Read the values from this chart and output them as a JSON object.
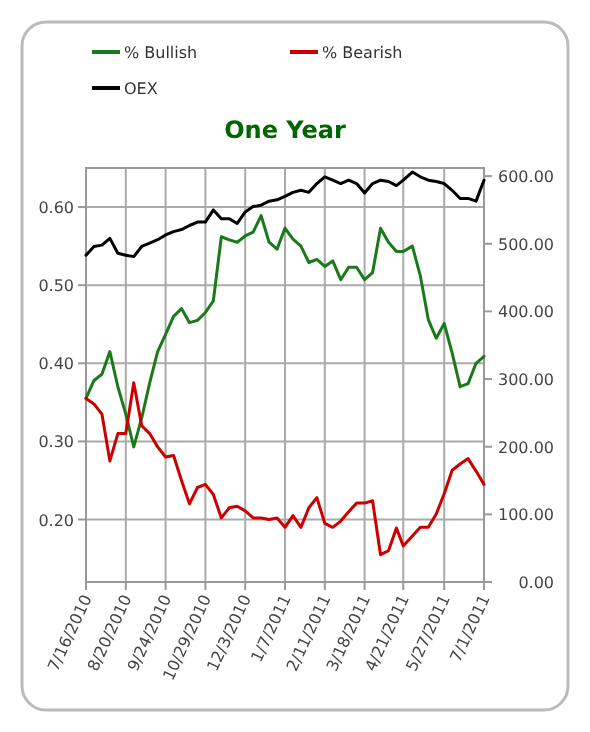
{
  "chart_data": {
    "type": "line",
    "title": "One Year",
    "x": [
      "2010-07-16",
      "2010-07-23",
      "2010-07-30",
      "2010-08-06",
      "2010-08-13",
      "2010-08-20",
      "2010-08-27",
      "2010-09-03",
      "2010-09-10",
      "2010-09-17",
      "2010-09-24",
      "2010-10-01",
      "2010-10-08",
      "2010-10-15",
      "2010-10-22",
      "2010-10-29",
      "2010-11-05",
      "2010-11-12",
      "2010-11-19",
      "2010-11-26",
      "2010-12-03",
      "2010-12-10",
      "2010-12-17",
      "2010-12-24",
      "2010-12-31",
      "2011-01-07",
      "2011-01-14",
      "2011-01-21",
      "2011-01-28",
      "2011-02-04",
      "2011-02-11",
      "2011-02-18",
      "2011-02-25",
      "2011-03-04",
      "2011-03-11",
      "2011-03-18",
      "2011-03-25",
      "2011-04-01",
      "2011-04-08",
      "2011-04-15",
      "2011-04-21",
      "2011-04-29",
      "2011-05-06",
      "2011-05-13",
      "2011-05-20",
      "2011-05-27",
      "2011-06-03",
      "2011-06-10",
      "2011-06-17",
      "2011-06-24",
      "2011-07-01"
    ],
    "series": [
      {
        "name": "% Bullish",
        "color": "#1a7a1a",
        "values": [
          0.355,
          0.378,
          0.386,
          0.415,
          0.37,
          0.335,
          0.293,
          0.33,
          0.375,
          0.415,
          0.437,
          0.46,
          0.47,
          0.452,
          0.455,
          0.465,
          0.48,
          0.562,
          0.558,
          0.555,
          0.563,
          0.568,
          0.589,
          0.555,
          0.546,
          0.573,
          0.559,
          0.55,
          0.529,
          0.533,
          0.524,
          0.531,
          0.507,
          0.523,
          0.523,
          0.507,
          0.516,
          0.573,
          0.555,
          0.543,
          0.543,
          0.55,
          0.512,
          0.456,
          0.432,
          0.451,
          0.413,
          0.37,
          0.374,
          0.4,
          0.409
        ]
      },
      {
        "name": "% Bearish",
        "color": "#cc0000",
        "values": [
          0.355,
          0.348,
          0.335,
          0.275,
          0.31,
          0.31,
          0.375,
          0.32,
          0.31,
          0.293,
          0.28,
          0.282,
          0.25,
          0.22,
          0.241,
          0.245,
          0.232,
          0.202,
          0.215,
          0.217,
          0.211,
          0.202,
          0.202,
          0.2,
          0.202,
          0.19,
          0.205,
          0.19,
          0.215,
          0.228,
          0.195,
          0.19,
          0.198,
          0.21,
          0.221,
          0.221,
          0.224,
          0.155,
          0.16,
          0.189,
          0.166,
          0.179,
          0.19,
          0.19,
          0.207,
          0.233,
          0.263,
          0.271,
          0.278,
          0.262,
          0.245
        ]
      },
      {
        "name": "OEX",
        "color": "#000000",
        "axis": "y2",
        "values": [
          483,
          496,
          498,
          508,
          486,
          483,
          481,
          496,
          501,
          506,
          513,
          518,
          521,
          527,
          532,
          532,
          550,
          537,
          537,
          530,
          547,
          555,
          557,
          563,
          565,
          570,
          576,
          579,
          576,
          589,
          599,
          594,
          589,
          594,
          589,
          575,
          589,
          594,
          592,
          586,
          594,
          606,
          599,
          594,
          592,
          589,
          579,
          567,
          567,
          563,
          594
        ]
      }
    ],
    "xlim": [
      "2010-07-16",
      "2011-07-01"
    ],
    "xticks": [
      {
        "value": "2010-07-16",
        "label": "7/16/2010"
      },
      {
        "value": "2010-08-20",
        "label": "8/20/2010"
      },
      {
        "value": "2010-09-24",
        "label": "9/24/2010"
      },
      {
        "value": "2010-10-29",
        "label": "10/29/2010"
      },
      {
        "value": "2010-12-03",
        "label": "12/3/2010"
      },
      {
        "value": "2011-01-07",
        "label": "1/7/2011"
      },
      {
        "value": "2011-02-11",
        "label": "2/11/2011"
      },
      {
        "value": "2011-03-18",
        "label": "3/18/2011"
      },
      {
        "value": "2011-04-21",
        "label": "4/21/2011"
      },
      {
        "value": "2011-05-27",
        "label": "5/27/2011"
      },
      {
        "value": "2011-07-01",
        "label": "7/1/2011"
      }
    ],
    "ylim": [
      0.12,
      0.65
    ],
    "yticks": [
      {
        "value": 0.2,
        "label": "0.20"
      },
      {
        "value": 0.3,
        "label": "0.30"
      },
      {
        "value": 0.4,
        "label": "0.40"
      },
      {
        "value": 0.5,
        "label": "0.50"
      },
      {
        "value": 0.6,
        "label": "0.60"
      }
    ],
    "y2lim": [
      0,
      612
    ],
    "y2ticks": [
      {
        "value": 0,
        "label": "0.00"
      },
      {
        "value": 100,
        "label": "100.00"
      },
      {
        "value": 200,
        "label": "200.00"
      },
      {
        "value": 300,
        "label": "300.00"
      },
      {
        "value": 400,
        "label": "400.00"
      },
      {
        "value": 500,
        "label": "500.00"
      },
      {
        "value": 600,
        "label": "600.00"
      }
    ],
    "grid": true,
    "legend": "top",
    "marker": "none",
    "line_style": "solid"
  }
}
